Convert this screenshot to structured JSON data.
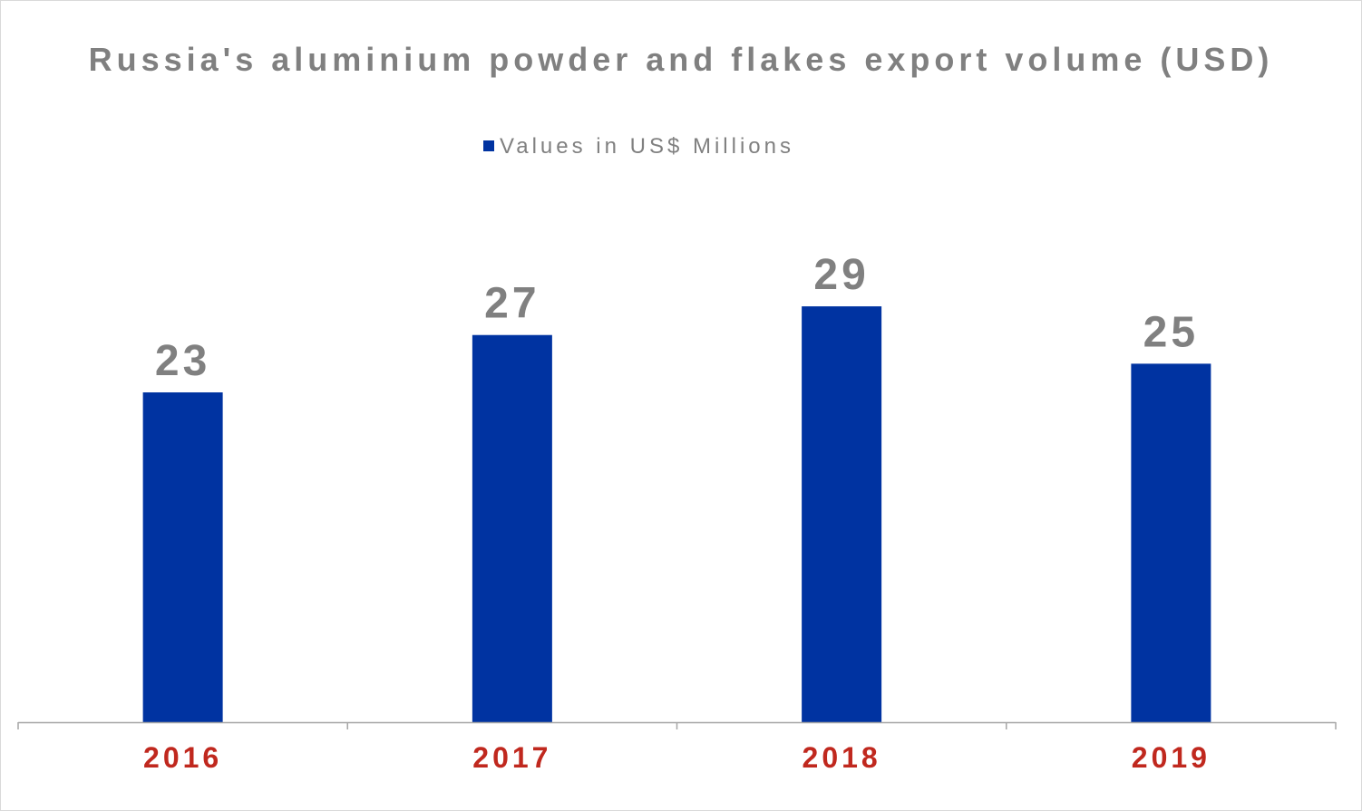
{
  "chart_data": {
    "type": "bar",
    "title": "Russia's aluminium powder and flakes export volume (USD)",
    "categories": [
      "2016",
      "2017",
      "2018",
      "2019"
    ],
    "series": [
      {
        "name": "Values in US$ Millions",
        "values": [
          23,
          27,
          29,
          25
        ]
      }
    ],
    "ylim": [
      0,
      40
    ],
    "grid": false,
    "legend_position": "top-center",
    "data_labels": true
  },
  "colors": {
    "bar": "#0033A1",
    "title": "#808080",
    "legend_text": "#808080",
    "data_label": "#808080",
    "tick_label": "#C0281E",
    "axis": "#A6A6A6"
  }
}
